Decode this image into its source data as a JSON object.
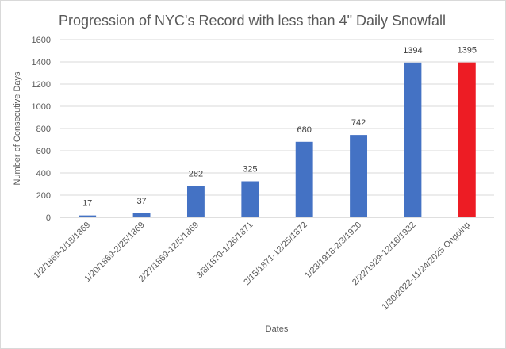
{
  "chart_data": {
    "type": "bar",
    "title": "Progression of NYC's Record with less than 4\" Daily Snowfall",
    "xlabel": "Dates",
    "ylabel": "Number  of Consecutive Days",
    "ylim": [
      0,
      1600
    ],
    "yticks": [
      0,
      200,
      400,
      600,
      800,
      1000,
      1200,
      1400,
      1600
    ],
    "grid": true,
    "legend": "none",
    "categories": [
      "1/2/1869-1/18/1869",
      "1/20/1869-2/25/1869",
      "2/27/1869-12/5/1869",
      "3/8/1870-1/26/1871",
      "2/15/1871-12/25/1872",
      "1/23/1918-2/3/1920",
      "2/22/1929-12/16/1932",
      "1/30/2022-11/24/2025 Ongoing"
    ],
    "values": [
      17,
      37,
      282,
      325,
      680,
      742,
      1394,
      1395
    ],
    "data_labels": [
      "17",
      "37",
      "282",
      "325",
      "680",
      "742",
      "1394",
      "1395"
    ],
    "colors": [
      "#4472C4",
      "#4472C4",
      "#4472C4",
      "#4472C4",
      "#4472C4",
      "#4472C4",
      "#4472C4",
      "#ED1C24"
    ]
  }
}
